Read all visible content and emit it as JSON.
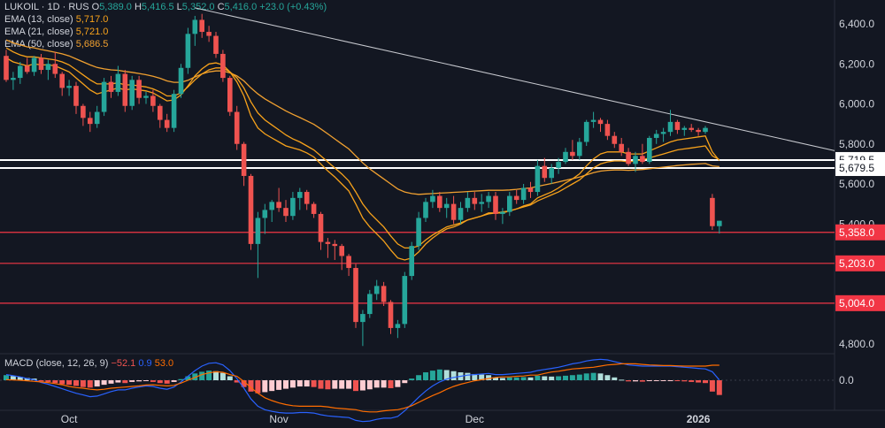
{
  "header": {
    "symbol": "LUKOIL · 1D · RUS",
    "open_label": "O",
    "open": "5,389.0",
    "high_label": "H",
    "high": "5,416.5",
    "low_label": "L",
    "low": "5,352.0",
    "close_label": "C",
    "close": "5,416.0",
    "change": "+23.0 (+0.43%)"
  },
  "indicators": [
    {
      "label": "EMA (13, close)",
      "value": "5,717.0",
      "color": "#f7a21b"
    },
    {
      "label": "EMA (21, close)",
      "value": "5,721.0",
      "color": "#f7a21b"
    },
    {
      "label": "EMA (50, close)",
      "value": "5,686.5",
      "color": "#f0a030"
    }
  ],
  "macd_legend": {
    "label": "MACD (close, 12, 26, 9)",
    "hist": "−52.1",
    "macd": "0.9",
    "signal": "53.0"
  },
  "colors": {
    "background": "#131722",
    "up": "#26a69a",
    "down": "#ef5350",
    "ema": "#f7a21b",
    "level": "#f23645",
    "macd": "#2962ff",
    "signal": "#ff6d00"
  },
  "chart_data": {
    "type": "candlestick",
    "y_ticks": [
      "6,400.0",
      "6,200.0",
      "6,000.0",
      "5,800.0",
      "5,600.0",
      "5,400.0",
      "4,800.0"
    ],
    "ylim": [
      4760,
      6480
    ],
    "x_labels": [
      "Oct",
      "Nov",
      "Dec",
      "2026"
    ],
    "x_label_index": [
      9,
      39,
      67,
      99
    ],
    "macd_tick": "0.0",
    "price_tags": [
      {
        "value": 5719.5,
        "label": "5,719.5",
        "style": "white"
      },
      {
        "value": 5679.5,
        "label": "5,679.5",
        "style": "white"
      },
      {
        "value": 5358.0,
        "label": "5,358.0",
        "style": "red"
      },
      {
        "value": 5203.0,
        "label": "5,203.0",
        "style": "red"
      },
      {
        "value": 5004.0,
        "label": "5,004.0",
        "style": "red"
      }
    ],
    "trendline": {
      "from": [
        27,
        6480
      ],
      "to": [
        118,
        5770
      ]
    },
    "candles": [
      [
        6240,
        6270,
        6110,
        6120
      ],
      [
        6120,
        6160,
        6070,
        6130
      ],
      [
        6130,
        6210,
        6100,
        6190
      ],
      [
        6190,
        6230,
        6150,
        6160
      ],
      [
        6160,
        6240,
        6140,
        6230
      ],
      [
        6230,
        6250,
        6150,
        6170
      ],
      [
        6170,
        6220,
        6120,
        6200
      ],
      [
        6200,
        6260,
        6130,
        6150
      ],
      [
        6150,
        6160,
        6040,
        6080
      ],
      [
        6080,
        6120,
        6040,
        6090
      ],
      [
        6090,
        6110,
        5950,
        5990
      ],
      [
        5990,
        6000,
        5890,
        5930
      ],
      [
        5930,
        5960,
        5860,
        5900
      ],
      [
        5900,
        5990,
        5880,
        5960
      ],
      [
        5960,
        6130,
        5940,
        6110
      ],
      [
        6110,
        6140,
        6030,
        6060
      ],
      [
        6060,
        6190,
        6040,
        6150
      ],
      [
        6150,
        6170,
        5960,
        5990
      ],
      [
        5990,
        6140,
        5970,
        6120
      ],
      [
        6120,
        6140,
        6000,
        6030
      ],
      [
        6030,
        6060,
        6000,
        6040
      ],
      [
        6040,
        6070,
        5960,
        5990
      ],
      [
        5990,
        6000,
        5880,
        5920
      ],
      [
        5920,
        5950,
        5860,
        5880
      ],
      [
        5880,
        6070,
        5860,
        6050
      ],
      [
        6050,
        6200,
        6030,
        6180
      ],
      [
        6180,
        6380,
        6150,
        6350
      ],
      [
        6350,
        6440,
        6290,
        6420
      ],
      [
        6420,
        6450,
        6330,
        6360
      ],
      [
        6360,
        6390,
        6310,
        6340
      ],
      [
        6340,
        6360,
        6230,
        6250
      ],
      [
        6250,
        6270,
        6110,
        6130
      ],
      [
        6130,
        6140,
        5940,
        5960
      ],
      [
        5960,
        5990,
        5770,
        5800
      ],
      [
        5800,
        5810,
        5590,
        5640
      ],
      [
        5640,
        5650,
        5270,
        5300
      ],
      [
        5300,
        5460,
        5130,
        5430
      ],
      [
        5430,
        5500,
        5350,
        5470
      ],
      [
        5470,
        5520,
        5410,
        5510
      ],
      [
        5510,
        5580,
        5460,
        5480
      ],
      [
        5480,
        5520,
        5410,
        5440
      ],
      [
        5440,
        5560,
        5420,
        5530
      ],
      [
        5530,
        5580,
        5470,
        5560
      ],
      [
        5560,
        5570,
        5470,
        5500
      ],
      [
        5500,
        5510,
        5430,
        5450
      ],
      [
        5450,
        5460,
        5270,
        5310
      ],
      [
        5310,
        5330,
        5230,
        5300
      ],
      [
        5300,
        5320,
        5220,
        5290
      ],
      [
        5290,
        5300,
        5170,
        5240
      ],
      [
        5240,
        5250,
        5140,
        5180
      ],
      [
        5180,
        5200,
        4880,
        4910
      ],
      [
        4910,
        4970,
        4790,
        4950
      ],
      [
        4950,
        5070,
        4930,
        5050
      ],
      [
        5050,
        5120,
        5020,
        5090
      ],
      [
        5090,
        5110,
        4990,
        5010
      ],
      [
        5010,
        5020,
        4850,
        4880
      ],
      [
        4880,
        4920,
        4830,
        4900
      ],
      [
        4900,
        5160,
        4880,
        5140
      ],
      [
        5140,
        5310,
        5120,
        5290
      ],
      [
        5290,
        5460,
        5270,
        5430
      ],
      [
        5430,
        5530,
        5410,
        5510
      ],
      [
        5510,
        5570,
        5480,
        5540
      ],
      [
        5540,
        5560,
        5460,
        5480
      ],
      [
        5480,
        5530,
        5430,
        5500
      ],
      [
        5500,
        5540,
        5400,
        5420
      ],
      [
        5420,
        5510,
        5400,
        5480
      ],
      [
        5480,
        5560,
        5460,
        5530
      ],
      [
        5530,
        5560,
        5470,
        5500
      ],
      [
        5500,
        5550,
        5460,
        5510
      ],
      [
        5510,
        5560,
        5480,
        5540
      ],
      [
        5540,
        5560,
        5420,
        5450
      ],
      [
        5450,
        5480,
        5400,
        5460
      ],
      [
        5460,
        5560,
        5440,
        5540
      ],
      [
        5540,
        5570,
        5500,
        5520
      ],
      [
        5520,
        5600,
        5500,
        5580
      ],
      [
        5580,
        5610,
        5530,
        5560
      ],
      [
        5560,
        5720,
        5540,
        5690
      ],
      [
        5690,
        5730,
        5610,
        5630
      ],
      [
        5630,
        5700,
        5600,
        5680
      ],
      [
        5680,
        5730,
        5650,
        5710
      ],
      [
        5710,
        5780,
        5700,
        5760
      ],
      [
        5760,
        5820,
        5720,
        5740
      ],
      [
        5740,
        5830,
        5720,
        5810
      ],
      [
        5810,
        5920,
        5790,
        5910
      ],
      [
        5910,
        5960,
        5880,
        5920
      ],
      [
        5920,
        5930,
        5860,
        5900
      ],
      [
        5900,
        5920,
        5820,
        5840
      ],
      [
        5840,
        5860,
        5780,
        5800
      ],
      [
        5800,
        5830,
        5740,
        5760
      ],
      [
        5760,
        5780,
        5690,
        5700
      ],
      [
        5700,
        5760,
        5660,
        5740
      ],
      [
        5740,
        5800,
        5700,
        5710
      ],
      [
        5710,
        5840,
        5700,
        5830
      ],
      [
        5830,
        5870,
        5800,
        5850
      ],
      [
        5850,
        5880,
        5810,
        5860
      ],
      [
        5860,
        5970,
        5840,
        5910
      ],
      [
        5910,
        5920,
        5850,
        5870
      ],
      [
        5870,
        5890,
        5840,
        5880
      ],
      [
        5880,
        5900,
        5860,
        5870
      ],
      [
        5870,
        5880,
        5840,
        5860
      ],
      [
        5860,
        5890,
        5850,
        5880
      ],
      [
        5530,
        5550,
        5370,
        5389
      ],
      [
        5389,
        5416.5,
        5352,
        5416
      ]
    ],
    "ema_13": [
      6230,
      6210,
      6200,
      6190,
      6200,
      6195,
      6195,
      6190,
      6175,
      6160,
      6130,
      6100,
      6070,
      6050,
      6060,
      6070,
      6080,
      6070,
      6075,
      6070,
      6065,
      6055,
      6035,
      6015,
      6020,
      6045,
      6090,
      6140,
      6175,
      6200,
      6205,
      6195,
      6160,
      6110,
      6040,
      5940,
      5880,
      5850,
      5830,
      5810,
      5790,
      5780,
      5770,
      5755,
      5735,
      5700,
      5665,
      5635,
      5600,
      5565,
      5500,
      5430,
      5385,
      5350,
      5315,
      5270,
      5230,
      5220,
      5230,
      5260,
      5300,
      5330,
      5355,
      5375,
      5385,
      5400,
      5420,
      5430,
      5440,
      5455,
      5455,
      5455,
      5465,
      5475,
      5490,
      5500,
      5530,
      5545,
      5560,
      5580,
      5605,
      5625,
      5650,
      5690,
      5725,
      5750,
      5760,
      5760,
      5760,
      5750,
      5750,
      5750,
      5765,
      5780,
      5795,
      5810,
      5820,
      5825,
      5830,
      5835,
      5840,
      5760,
      5717
    ],
    "ema_21": [
      6280,
      6260,
      6245,
      6235,
      6235,
      6230,
      6225,
      6220,
      6210,
      6195,
      6170,
      6145,
      6120,
      6100,
      6100,
      6100,
      6105,
      6095,
      6095,
      6090,
      6085,
      6075,
      6060,
      6040,
      6040,
      6055,
      6085,
      6120,
      6150,
      6170,
      6180,
      6180,
      6160,
      6130,
      6080,
      6010,
      5955,
      5920,
      5895,
      5870,
      5845,
      5825,
      5810,
      5790,
      5770,
      5740,
      5710,
      5680,
      5650,
      5615,
      5560,
      5500,
      5455,
      5420,
      5385,
      5340,
      5300,
      5280,
      5280,
      5290,
      5320,
      5345,
      5365,
      5385,
      5395,
      5405,
      5420,
      5430,
      5440,
      5450,
      5455,
      5460,
      5465,
      5475,
      5485,
      5495,
      5515,
      5530,
      5545,
      5560,
      5580,
      5600,
      5620,
      5650,
      5680,
      5700,
      5710,
      5715,
      5715,
      5710,
      5715,
      5720,
      5730,
      5740,
      5750,
      5760,
      5770,
      5775,
      5780,
      5785,
      5790,
      5740,
      5721
    ],
    "ema_50": [
      6320,
      6305,
      6295,
      6285,
      6280,
      6272,
      6265,
      6258,
      6250,
      6240,
      6225,
      6210,
      6195,
      6182,
      6175,
      6170,
      6168,
      6162,
      6158,
      6152,
      6146,
      6138,
      6128,
      6115,
      6108,
      6108,
      6118,
      6135,
      6150,
      6160,
      6165,
      6165,
      6155,
      6140,
      6115,
      6080,
      6050,
      6025,
      6005,
      5985,
      5965,
      5948,
      5932,
      5915,
      5898,
      5875,
      5850,
      5825,
      5800,
      5775,
      5740,
      5705,
      5675,
      5650,
      5625,
      5600,
      5575,
      5560,
      5552,
      5548,
      5550,
      5552,
      5554,
      5556,
      5558,
      5560,
      5562,
      5564,
      5566,
      5568,
      5568,
      5568,
      5570,
      5573,
      5577,
      5580,
      5588,
      5595,
      5602,
      5610,
      5618,
      5626,
      5634,
      5645,
      5656,
      5664,
      5668,
      5670,
      5670,
      5668,
      5670,
      5672,
      5676,
      5680,
      5684,
      5688,
      5692,
      5695,
      5698,
      5700,
      5702,
      5690,
      5686.5
    ],
    "macd_hist": [
      18,
      15,
      12,
      8,
      6,
      -4,
      -6,
      -10,
      -14,
      -16,
      -20,
      -24,
      -26,
      -22,
      -16,
      -12,
      -8,
      -10,
      -6,
      -4,
      -3,
      -6,
      -10,
      -12,
      -6,
      4,
      14,
      24,
      30,
      34,
      32,
      26,
      14,
      -8,
      -24,
      -40,
      -46,
      -42,
      -38,
      -34,
      -30,
      -26,
      -22,
      -22,
      -24,
      -30,
      -32,
      -30,
      -30,
      -30,
      -38,
      -36,
      -32,
      -26,
      -26,
      -28,
      -24,
      -10,
      6,
      18,
      28,
      34,
      38,
      36,
      32,
      28,
      26,
      22,
      20,
      18,
      10,
      8,
      10,
      10,
      11,
      10,
      16,
      14,
      13,
      14,
      16,
      18,
      20,
      24,
      26,
      24,
      18,
      10,
      2,
      -4,
      -4,
      -5,
      -3,
      -2,
      -2,
      -2,
      -3,
      -4,
      -6,
      -8,
      -10,
      -40,
      -52.1
    ],
    "macd_line": [
      20,
      16,
      12,
      6,
      2,
      -8,
      -14,
      -22,
      -30,
      -38,
      -46,
      -52,
      -58,
      -56,
      -48,
      -40,
      -34,
      -34,
      -28,
      -24,
      -20,
      -22,
      -28,
      -32,
      -24,
      -6,
      14,
      34,
      50,
      60,
      62,
      54,
      34,
      6,
      -28,
      -66,
      -92,
      -104,
      -110,
      -114,
      -116,
      -116,
      -114,
      -114,
      -116,
      -122,
      -126,
      -128,
      -130,
      -132,
      -142,
      -146,
      -144,
      -138,
      -134,
      -134,
      -128,
      -108,
      -84,
      -60,
      -38,
      -20,
      -6,
      4,
      10,
      14,
      18,
      20,
      22,
      24,
      20,
      20,
      22,
      24,
      26,
      28,
      34,
      38,
      42,
      46,
      52,
      58,
      62,
      68,
      72,
      74,
      72,
      66,
      60,
      54,
      52,
      50,
      50,
      50,
      50,
      50,
      48,
      46,
      44,
      42,
      40,
      30,
      0.9
    ],
    "macd_signal": [
      2,
      1,
      0,
      -2,
      -4,
      -6,
      -8,
      -12,
      -16,
      -22,
      -26,
      -28,
      -32,
      -34,
      -32,
      -28,
      -26,
      -24,
      -22,
      -20,
      -17,
      -16,
      -18,
      -20,
      -18,
      -10,
      0,
      10,
      20,
      26,
      30,
      28,
      20,
      14,
      -4,
      -26,
      -46,
      -62,
      -72,
      -80,
      -86,
      -90,
      -92,
      -92,
      -92,
      -92,
      -94,
      -98,
      -100,
      -102,
      -104,
      -110,
      -112,
      -112,
      -108,
      -106,
      -104,
      -98,
      -90,
      -78,
      -66,
      -54,
      -44,
      -32,
      -22,
      -14,
      -8,
      -2,
      2,
      6,
      10,
      12,
      12,
      14,
      15,
      18,
      18,
      24,
      29,
      32,
      36,
      40,
      42,
      44,
      46,
      50,
      54,
      56,
      58,
      58,
      58,
      56,
      54,
      53,
      52,
      52,
      51,
      50,
      50,
      50,
      50,
      53,
      53
    ]
  }
}
